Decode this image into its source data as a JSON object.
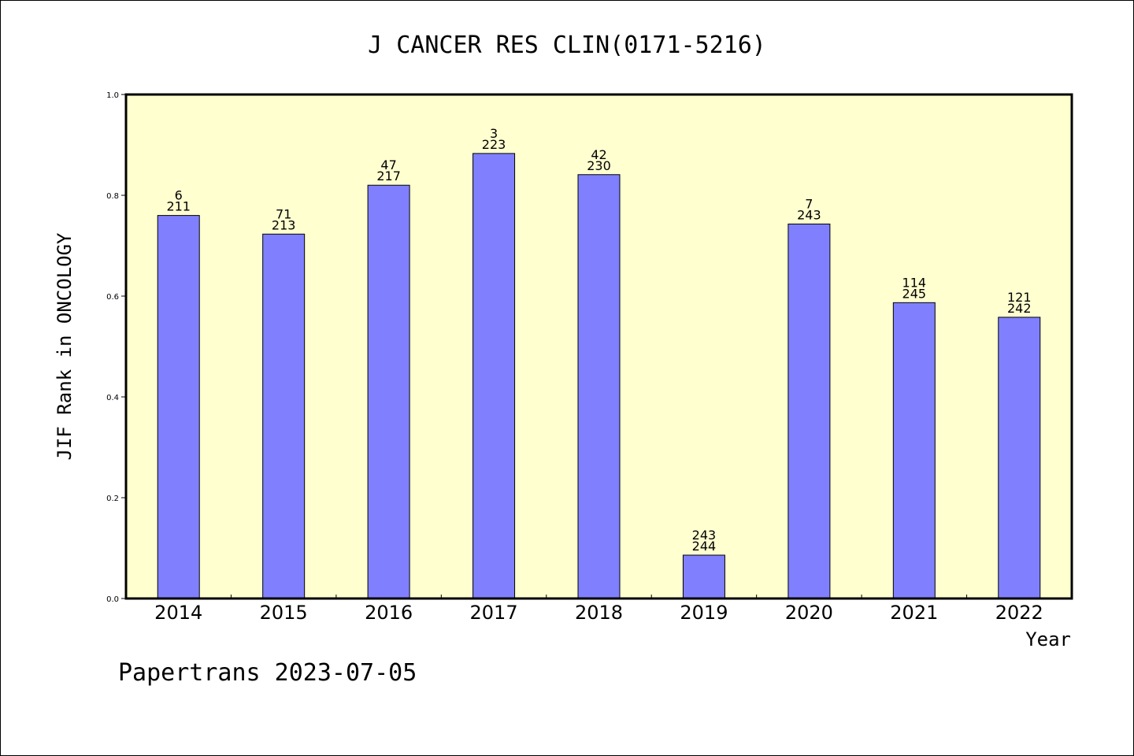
{
  "chart_data": {
    "type": "bar",
    "title": "J CANCER RES CLIN(0171-5216)",
    "xlabel": "Year",
    "ylabel": "JIF Rank in ONCOLOGY",
    "ylim": [
      0,
      1.0
    ],
    "yticks": [
      "0.0",
      "0.2",
      "0.4",
      "0.6",
      "0.8",
      "1.0"
    ],
    "ytick_values": [
      0.0,
      0.2,
      0.4,
      0.6,
      0.8,
      1.0
    ],
    "categories": [
      "2014",
      "2015",
      "2016",
      "2017",
      "2018",
      "2019",
      "2020",
      "2021",
      "2022"
    ],
    "values": [
      0.76,
      0.723,
      0.82,
      0.883,
      0.841,
      0.086,
      0.743,
      0.587,
      0.558
    ],
    "ranks": [
      "6",
      "71",
      "47",
      "3",
      "42",
      "243",
      "7",
      "114",
      "121"
    ],
    "totals": [
      "211",
      "213",
      "217",
      "223",
      "230",
      "244",
      "243",
      "245",
      "242"
    ],
    "background_color": "#ffffd0",
    "bar_color": "#8080ff",
    "grid": false,
    "legend": "none"
  },
  "footer": {
    "text": "Papertrans 2023-07-05"
  }
}
